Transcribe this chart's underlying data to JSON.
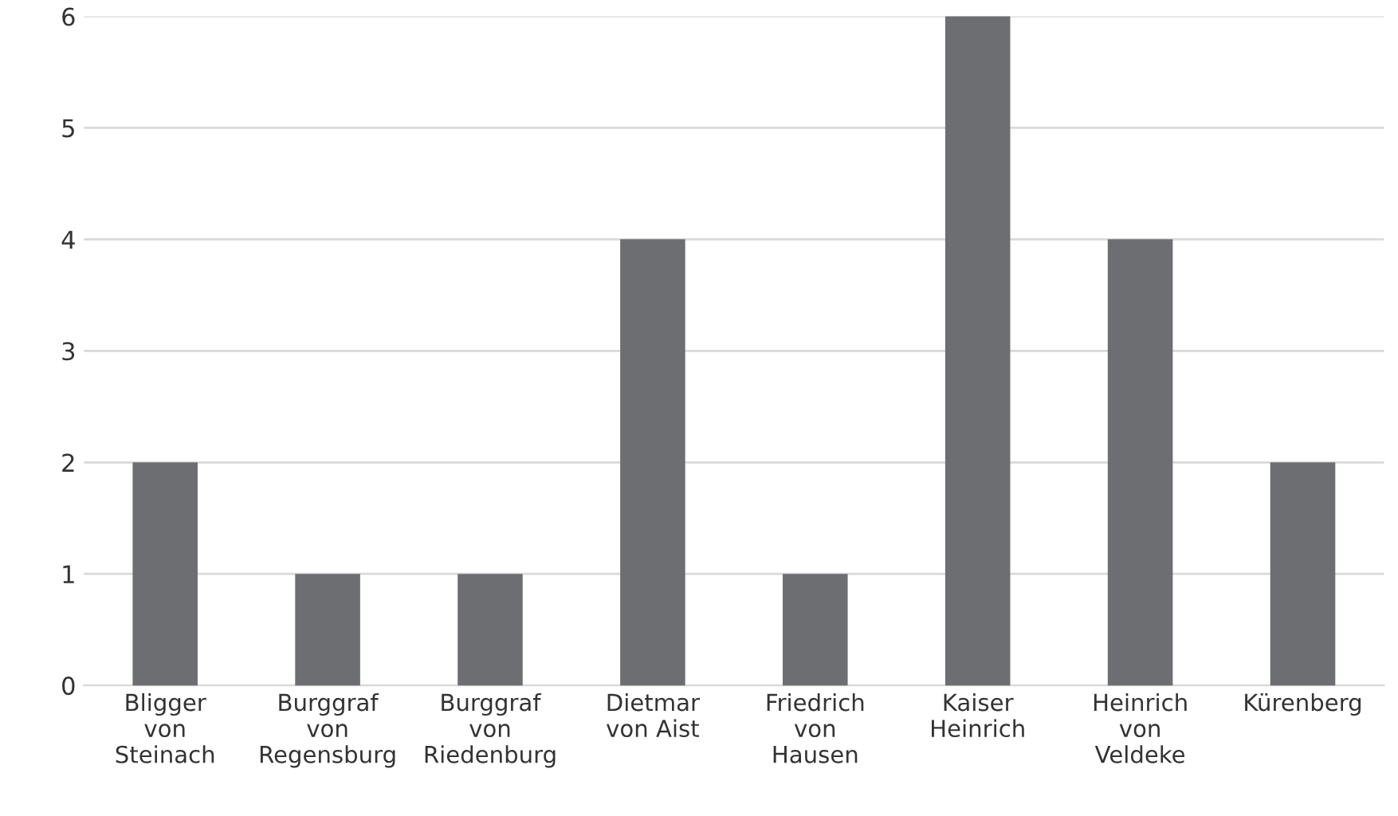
{
  "chart_data": {
    "type": "bar",
    "categories": [
      "Bligger\nvon\nSteinach",
      "Burggraf\nvon\nRegensburg",
      "Burggraf\nvon\nRiedenburg",
      "Dietmar\nvon Aist",
      "Friedrich\nvon\nHausen",
      "Kaiser\nHeinrich",
      "Heinrich\nvon\nVeldeke",
      "Kürenberg"
    ],
    "values": [
      2,
      1,
      1,
      4,
      1,
      6,
      4,
      2
    ],
    "color": "#6d6e71",
    "ylim": [
      0,
      6
    ],
    "yticks": [
      0,
      1,
      2,
      3,
      4,
      5,
      6
    ],
    "grid": "y",
    "legend": false
  }
}
